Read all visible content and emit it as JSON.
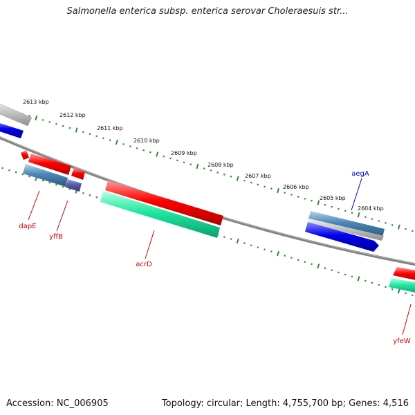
{
  "title": "Salmonella enterica subsp. enterica serovar Choleraesuis str...",
  "footer": {
    "accession": "Accession: NC_006905",
    "topology": "Topology: circular; Length: 4,755,700 bp; Genes: 4,516"
  },
  "colors": {
    "backbone": "#808080",
    "ticks": "#2e8b2e",
    "cds_red": "#ff0000",
    "cds_teal": "#1ee8a0",
    "cds_steel": "#4a86b4",
    "cds_blue": "#0000ee",
    "cds_grey": "#c0c0c0",
    "cds_purple": "#5a5aa8",
    "label_red": "#cc0000",
    "label_blue": "#0000cc"
  },
  "scale": {
    "unit": "kbp",
    "labels": [
      "2613 kbp",
      "2612 kbp",
      "2611 kbp",
      "2610 kbp",
      "2609 kbp",
      "2608 kbp",
      "2607 kbp",
      "2606 kbp",
      "2605 kbp",
      "2604 kbp"
    ]
  },
  "genes": [
    {
      "name": "dapE",
      "color": "label_red"
    },
    {
      "name": "yffB",
      "color": "label_red"
    },
    {
      "name": "acrD",
      "color": "label_red"
    },
    {
      "name": "aegA",
      "color": "label_blue"
    },
    {
      "name": "yfeW",
      "color": "label_red"
    }
  ]
}
